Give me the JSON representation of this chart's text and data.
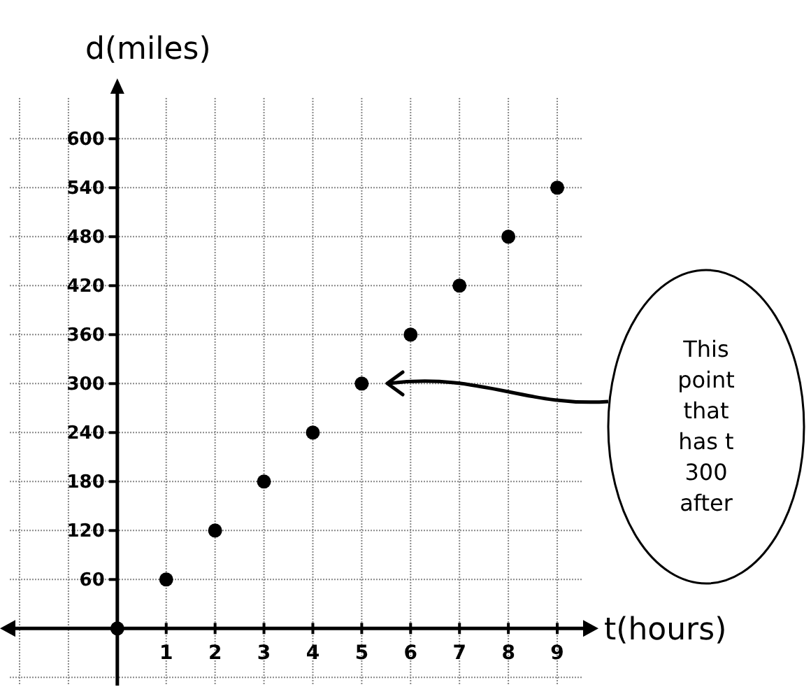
{
  "chart_data": {
    "type": "scatter",
    "xlabel": "t(hours)",
    "ylabel": "d(miles)",
    "x": [
      0,
      1,
      2,
      3,
      4,
      5,
      6,
      7,
      8,
      9
    ],
    "values": [
      0,
      60,
      120,
      180,
      240,
      300,
      360,
      420,
      480,
      540
    ],
    "color": "#000000",
    "marker": "circle",
    "grid": true,
    "xlim": [
      -2.2,
      9.5
    ],
    "ylim": [
      -70,
      650
    ],
    "xticks": [
      {
        "value": -2,
        "label": null
      },
      {
        "value": -1,
        "label": null
      },
      {
        "value": 0,
        "label": null
      },
      1,
      2,
      3,
      4,
      5,
      6,
      7,
      8,
      9
    ],
    "yticks": [
      {
        "value": -60,
        "label": null
      },
      {
        "value": 0,
        "label": null
      },
      60,
      120,
      180,
      240,
      300,
      360,
      420,
      480,
      540,
      600
    ],
    "annotations": [
      "This\npoint\nthat\nhas t\n300\nafter"
    ]
  }
}
